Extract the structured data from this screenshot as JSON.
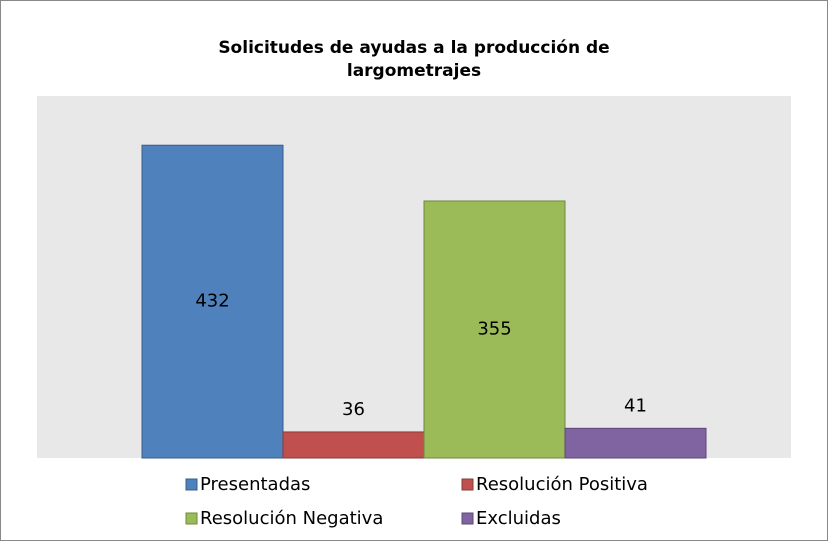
{
  "chart_data": {
    "type": "bar",
    "title": "Solicitudes de ayudas a la producción de largometrajes",
    "ylim": [
      0,
      500
    ],
    "series": [
      {
        "name": "Presentadas",
        "color": "#4f81bd",
        "values": [
          432
        ]
      },
      {
        "name": "Resolución Positiva",
        "color": "#c0504d",
        "values": [
          36
        ]
      },
      {
        "name": "Resolución Negativa",
        "color": "#9bbb59",
        "values": [
          355
        ]
      },
      {
        "name": "Excluidas",
        "color": "#8064a2",
        "values": [
          41
        ]
      }
    ]
  }
}
